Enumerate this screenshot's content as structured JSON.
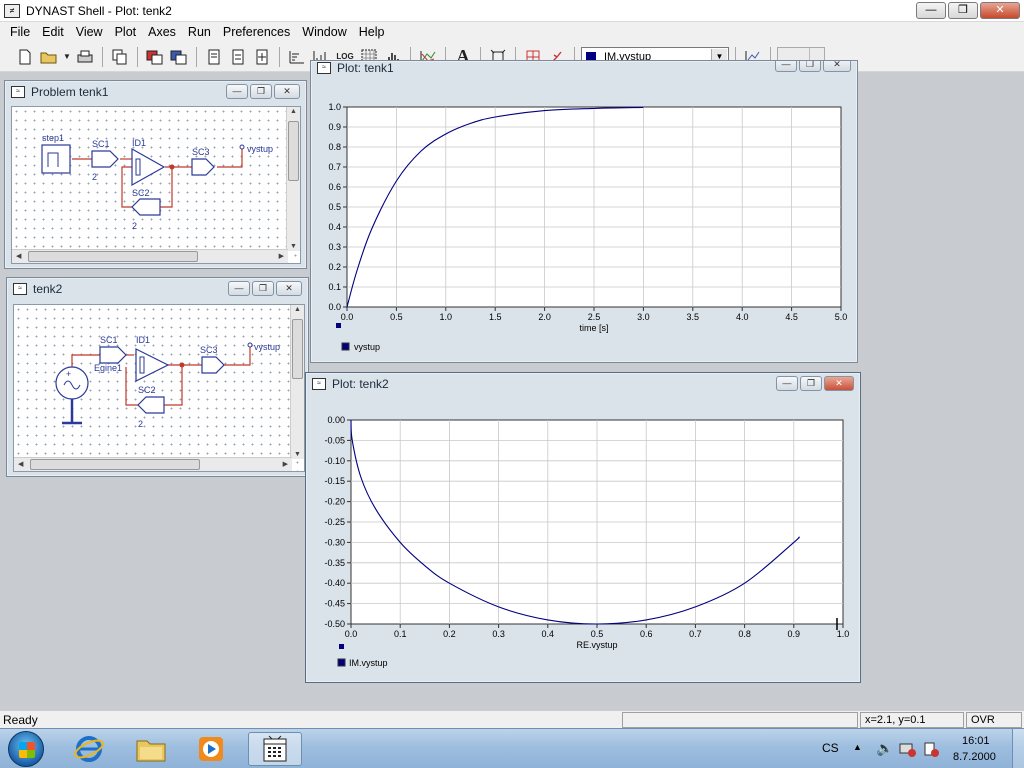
{
  "window": {
    "title": "DYNAST Shell - Plot: tenk2",
    "icon_label": "≠"
  },
  "menu": [
    {
      "label": "File"
    },
    {
      "label": "Edit"
    },
    {
      "label": "View"
    },
    {
      "label": "Plot"
    },
    {
      "label": "Axes"
    },
    {
      "label": "Run"
    },
    {
      "label": "Preferences"
    },
    {
      "label": "Window"
    },
    {
      "label": "Help"
    }
  ],
  "toolbar": {
    "log_label": "LOG",
    "text_tool_label": "A",
    "series_select": "IM.vystup",
    "series_color": "#000080"
  },
  "problem_window": {
    "title": "Problem tenk1",
    "labels": {
      "step": "step1",
      "sc1": "SC1",
      "sc1_val": "2",
      "id1": "ID1",
      "sc2": "SC2",
      "sc2_val": "2",
      "sc3": "SC3",
      "out": "vystup"
    }
  },
  "tenk2_window": {
    "title": "tenk2",
    "labels": {
      "src": "Egine1",
      "sc1": "SC1",
      "id1": "ID1",
      "sc2": "SC2",
      "sc2_val": "2",
      "sc3": "SC3",
      "out": "vystup"
    }
  },
  "plot_tenk1": {
    "title": "Plot: tenk1",
    "legend": "vystup",
    "xlabel": "time [s]",
    "line_color": "#000080"
  },
  "plot_tenk2": {
    "title": "Plot: tenk2",
    "legend": "IM.vystup",
    "xlabel": "RE.vystup",
    "line_color": "#000080"
  },
  "chart_data": [
    {
      "type": "line",
      "xlabel": "time [s]",
      "ylabel": "",
      "xlim": [
        0,
        5
      ],
      "ylim": [
        0,
        1
      ],
      "x_ticks": [
        "0.0",
        "0.5",
        "1.0",
        "1.5",
        "2.0",
        "2.5",
        "3.0",
        "3.5",
        "4.0",
        "4.5",
        "5.0"
      ],
      "y_ticks": [
        "0.0",
        "0.1",
        "0.2",
        "0.3",
        "0.4",
        "0.5",
        "0.6",
        "0.7",
        "0.8",
        "0.9",
        "1.0"
      ],
      "grid": true,
      "series": [
        {
          "name": "vystup",
          "x": [
            0,
            0.1,
            0.25,
            0.5,
            0.75,
            1.0,
            1.25,
            1.5,
            2.0,
            2.5,
            3.0
          ],
          "y": [
            0,
            0.18,
            0.39,
            0.63,
            0.78,
            0.865,
            0.918,
            0.95,
            0.982,
            0.993,
            0.998
          ]
        }
      ]
    },
    {
      "type": "line",
      "xlabel": "RE.vystup",
      "ylabel": "",
      "xlim": [
        0,
        1
      ],
      "ylim": [
        -0.5,
        0
      ],
      "x_ticks": [
        "0.0",
        "0.1",
        "0.2",
        "0.3",
        "0.4",
        "0.5",
        "0.6",
        "0.7",
        "0.8",
        "0.9",
        "1.0"
      ],
      "y_ticks": [
        "0.00",
        "-0.05",
        "-0.10",
        "-0.15",
        "-0.20",
        "-0.25",
        "-0.30",
        "-0.35",
        "-0.40",
        "-0.45",
        "-0.50"
      ],
      "grid": true,
      "series": [
        {
          "name": "IM.vystup",
          "x": [
            0.0,
            0.0025,
            0.02,
            0.05,
            0.1,
            0.15,
            0.2,
            0.3,
            0.4,
            0.5,
            0.6,
            0.7,
            0.8,
            0.9,
            0.91
          ],
          "y": [
            0.0,
            -0.05,
            -0.14,
            -0.218,
            -0.3,
            -0.357,
            -0.4,
            -0.458,
            -0.49,
            -0.5,
            -0.49,
            -0.458,
            -0.4,
            -0.3,
            -0.287
          ]
        }
      ]
    }
  ],
  "status": {
    "ready": "Ready",
    "coords": "x=2.1, y=0.1",
    "mode": "OVR"
  },
  "tray": {
    "lang": "CS",
    "time": "16:01",
    "date": "8.7.2000"
  }
}
